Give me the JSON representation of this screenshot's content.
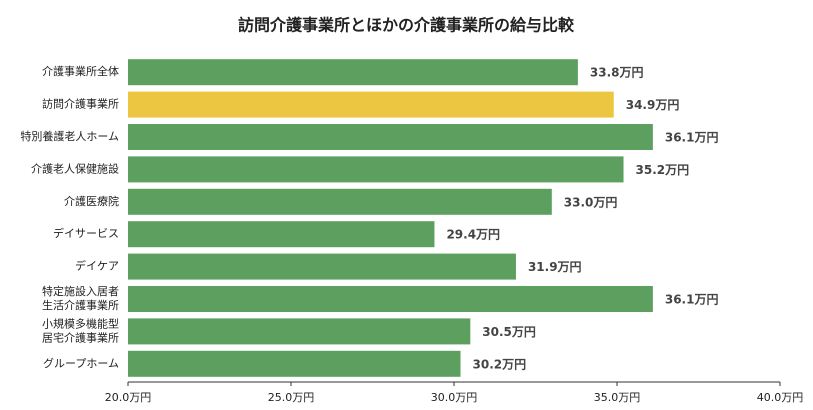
{
  "chart_data": {
    "type": "bar",
    "orientation": "horizontal",
    "title": "訪問介護事業所とほかの介護事業所の給与比較",
    "categories": [
      "介護事業所全体",
      "訪問介護事業所",
      "特別養護老人ホーム",
      "介護老人保健施設",
      "介護医療院",
      "デイサービス",
      "デイケア",
      "特定施設入居者\n生活介護事業所",
      "小規模多機能型\n居宅介護事業所",
      "グループホーム"
    ],
    "values": [
      33.8,
      34.9,
      36.1,
      35.2,
      33.0,
      29.4,
      31.9,
      36.1,
      30.5,
      30.2
    ],
    "value_labels": [
      "33.8万円",
      "34.9万円",
      "36.1万円",
      "35.2万円",
      "33.0万円",
      "29.4万円",
      "31.9万円",
      "36.1万円",
      "30.5万円",
      "30.2万円"
    ],
    "colors": [
      "#5c9f5e",
      "#ecc640",
      "#5c9f5e",
      "#5c9f5e",
      "#5c9f5e",
      "#5c9f5e",
      "#5c9f5e",
      "#5c9f5e",
      "#5c9f5e",
      "#5c9f5e"
    ],
    "xlim": [
      20,
      40
    ],
    "xticks": [
      {
        "value": 20,
        "label": "20.0万円"
      },
      {
        "value": 25,
        "label": "25.0万円"
      },
      {
        "value": 30,
        "label": "30.0万円"
      },
      {
        "value": 35,
        "label": "35.0万円"
      },
      {
        "value": 40,
        "label": "40.0万円"
      }
    ]
  }
}
